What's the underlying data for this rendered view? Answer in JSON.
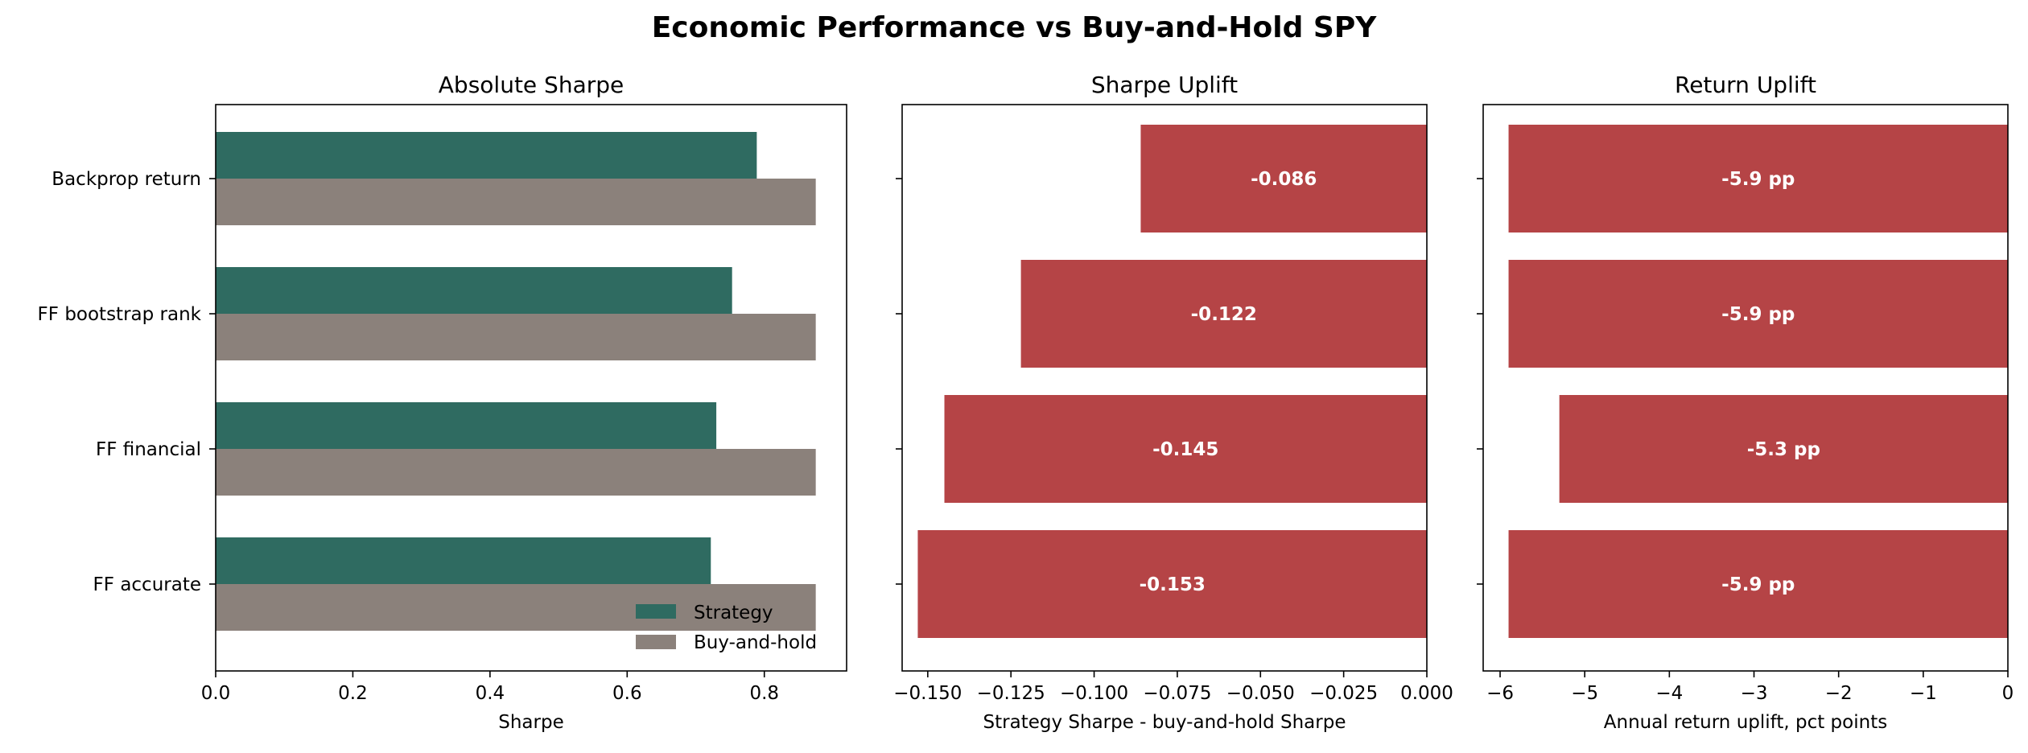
{
  "figure_title": "Economic Performance vs Buy-and-Hold SPY",
  "colors": {
    "strategy": "#2f6b61",
    "buy_and_hold": "#8b817b",
    "uplift": "#b54446"
  },
  "chart_data": [
    {
      "type": "bar",
      "orientation": "horizontal",
      "title": "Absolute Sharpe",
      "xlabel": "Sharpe",
      "ylabel": "",
      "categories": [
        "Backprop return",
        "FF bootstrap rank",
        "FF financial",
        "FF accurate"
      ],
      "series": [
        {
          "name": "Strategy",
          "values": [
            0.789,
            0.753,
            0.73,
            0.722
          ]
        },
        {
          "name": "Buy-and-hold",
          "values": [
            0.875,
            0.875,
            0.875,
            0.875
          ]
        }
      ],
      "xlim": [
        0,
        0.92
      ],
      "xticks": [
        0.0,
        0.2,
        0.4,
        0.6,
        0.8
      ],
      "xtick_labels": [
        "0.0",
        "0.2",
        "0.4",
        "0.6",
        "0.8"
      ],
      "legend_position": "lower-right",
      "grid": false
    },
    {
      "type": "bar",
      "orientation": "horizontal",
      "title": "Sharpe Uplift",
      "xlabel": "Strategy Sharpe - buy-and-hold Sharpe",
      "ylabel": "",
      "categories": [
        "Backprop return",
        "FF bootstrap rank",
        "FF financial",
        "FF accurate"
      ],
      "values": [
        -0.086,
        -0.122,
        -0.145,
        -0.153
      ],
      "data_labels": [
        "-0.086",
        "-0.122",
        "-0.145",
        "-0.153"
      ],
      "xlim": [
        -0.1577,
        0.0
      ],
      "xticks": [
        -0.15,
        -0.125,
        -0.1,
        -0.075,
        -0.05,
        -0.025,
        0.0
      ],
      "xtick_labels": [
        "−0.150",
        "−0.125",
        "−0.100",
        "−0.075",
        "−0.050",
        "−0.025",
        "0.000"
      ],
      "grid": false
    },
    {
      "type": "bar",
      "orientation": "horizontal",
      "title": "Return Uplift",
      "xlabel": "Annual return uplift, pct points",
      "ylabel": "",
      "categories": [
        "Backprop return",
        "FF bootstrap rank",
        "FF financial",
        "FF accurate"
      ],
      "values": [
        -5.9,
        -5.9,
        -5.3,
        -5.9
      ],
      "data_labels": [
        "-5.9 pp",
        "-5.9 pp",
        "-5.3 pp",
        "-5.9 pp"
      ],
      "xlim": [
        -6.2,
        0
      ],
      "xticks": [
        -6,
        -5,
        -4,
        -3,
        -2,
        -1,
        0
      ],
      "xtick_labels": [
        "−6",
        "−5",
        "−4",
        "−3",
        "−2",
        "−1",
        "0"
      ],
      "grid": false
    }
  ]
}
